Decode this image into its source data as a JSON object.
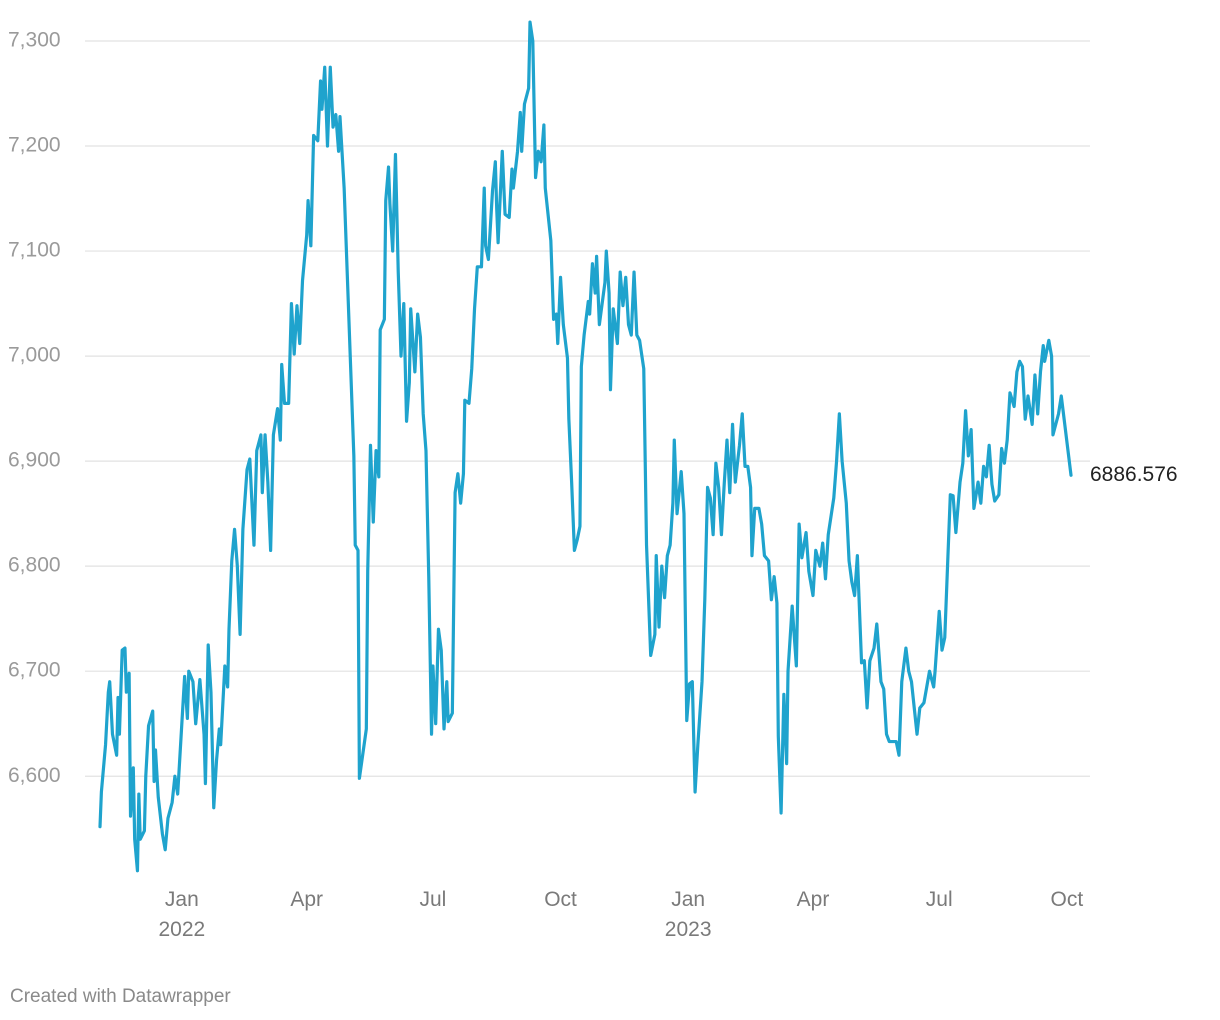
{
  "chart_data": {
    "type": "line",
    "color": "#1fa3cd",
    "credit": "Created with Datawrapper",
    "xlim": [
      "2021-11-03",
      "2023-10-04"
    ],
    "xticks": [
      {
        "value": "2022-01-01",
        "label": "Jan 2022"
      },
      {
        "value": "2022-04-01",
        "label": "Apr"
      },
      {
        "value": "2022-07-01",
        "label": "Jul"
      },
      {
        "value": "2022-10-01",
        "label": "Oct"
      },
      {
        "value": "2023-01-01",
        "label": "Jan 2023"
      },
      {
        "value": "2023-04-01",
        "label": "Apr"
      },
      {
        "value": "2023-07-01",
        "label": "Jul"
      },
      {
        "value": "2023-10-01",
        "label": "Oct"
      }
    ],
    "ylim": [
      6505,
      7320
    ],
    "yticks": [
      {
        "value": 6600,
        "label": "6,600"
      },
      {
        "value": 6700,
        "label": "6,700"
      },
      {
        "value": 6800,
        "label": "6,800"
      },
      {
        "value": 6900,
        "label": "6,900"
      },
      {
        "value": 7000,
        "label": "7,000"
      },
      {
        "value": 7100,
        "label": "7,100"
      },
      {
        "value": 7200,
        "label": "7,200"
      },
      {
        "value": 7300,
        "label": "7,300"
      }
    ],
    "grid": true,
    "x": [
      "2021-11-03",
      "2021-11-04",
      "2021-11-07",
      "2021-11-09",
      "2021-11-10",
      "2021-11-12",
      "2021-11-15",
      "2021-11-16",
      "2021-11-17",
      "2021-11-19",
      "2021-11-21",
      "2021-11-22",
      "2021-11-24",
      "2021-11-25",
      "2021-11-27",
      "2021-11-28",
      "2021-11-30",
      "2021-12-01",
      "2021-12-02",
      "2021-12-05",
      "2021-12-06",
      "2021-12-08",
      "2021-12-11",
      "2021-12-12",
      "2021-12-13",
      "2021-12-15",
      "2021-12-18",
      "2021-12-20",
      "2021-12-22",
      "2021-12-25",
      "2021-12-27",
      "2021-12-29",
      "2022-01-03",
      "2022-01-05",
      "2022-01-06",
      "2022-01-09",
      "2022-01-11",
      "2022-01-14",
      "2022-01-17",
      "2022-01-18",
      "2022-01-20",
      "2022-01-22",
      "2022-01-24",
      "2022-01-26",
      "2022-01-28",
      "2022-01-29",
      "2022-02-01",
      "2022-02-03",
      "2022-02-04",
      "2022-02-06",
      "2022-02-08",
      "2022-02-10",
      "2022-02-12",
      "2022-02-14",
      "2022-02-17",
      "2022-02-19",
      "2022-02-22",
      "2022-02-24",
      "2022-02-27",
      "2022-02-28",
      "2022-03-02",
      "2022-03-04",
      "2022-03-06",
      "2022-03-08",
      "2022-03-11",
      "2022-03-13",
      "2022-03-14",
      "2022-03-16",
      "2022-03-19",
      "2022-03-21",
      "2022-03-23",
      "2022-03-25",
      "2022-03-27",
      "2022-03-29",
      "2022-04-01",
      "2022-04-02",
      "2022-04-04",
      "2022-04-06",
      "2022-04-09",
      "2022-04-11",
      "2022-04-12",
      "2022-04-14",
      "2022-04-16",
      "2022-04-18",
      "2022-04-20",
      "2022-04-22",
      "2022-04-24",
      "2022-04-25",
      "2022-04-28",
      "2022-05-05",
      "2022-05-06",
      "2022-05-08",
      "2022-05-09",
      "2022-05-14",
      "2022-05-15",
      "2022-05-17",
      "2022-05-19",
      "2022-05-21",
      "2022-05-23",
      "2022-05-24",
      "2022-05-27",
      "2022-05-28",
      "2022-05-30",
      "2022-05-31",
      "2022-06-02",
      "2022-06-04",
      "2022-06-06",
      "2022-06-08",
      "2022-06-10",
      "2022-06-12",
      "2022-06-14",
      "2022-06-15",
      "2022-06-18",
      "2022-06-20",
      "2022-06-22",
      "2022-06-24",
      "2022-06-26",
      "2022-06-28",
      "2022-06-30",
      "2022-07-01",
      "2022-07-03",
      "2022-07-05",
      "2022-07-07",
      "2022-07-09",
      "2022-07-11",
      "2022-07-12",
      "2022-07-15",
      "2022-07-17",
      "2022-07-19",
      "2022-07-21",
      "2022-07-23",
      "2022-07-24",
      "2022-07-27",
      "2022-07-29",
      "2022-07-31",
      "2022-08-02",
      "2022-08-05",
      "2022-08-07",
      "2022-08-08",
      "2022-08-10",
      "2022-08-13",
      "2022-08-15",
      "2022-08-16",
      "2022-08-17",
      "2022-08-20",
      "2022-08-22",
      "2022-08-25",
      "2022-08-27",
      "2022-08-28",
      "2022-08-31",
      "2022-09-02",
      "2022-09-03",
      "2022-09-05",
      "2022-09-08",
      "2022-09-09",
      "2022-09-11",
      "2022-09-13",
      "2022-09-15",
      "2022-09-17",
      "2022-09-19",
      "2022-09-20",
      "2022-09-24",
      "2022-09-26",
      "2022-09-28",
      "2022-09-29",
      "2022-10-01",
      "2022-10-03",
      "2022-10-06",
      "2022-10-07",
      "2022-10-09",
      "2022-10-11",
      "2022-10-13",
      "2022-10-15",
      "2022-10-16",
      "2022-10-18",
      "2022-10-21",
      "2022-10-22",
      "2022-10-24",
      "2022-10-26",
      "2022-10-27",
      "2022-10-29",
      "2022-10-31",
      "2022-11-02",
      "2022-11-03",
      "2022-11-05",
      "2022-11-06",
      "2022-11-08",
      "2022-11-11",
      "2022-11-13",
      "2022-11-15",
      "2022-11-17",
      "2022-11-19",
      "2022-11-21",
      "2022-11-23",
      "2022-11-25",
      "2022-11-27",
      "2022-11-30",
      "2022-12-02",
      "2022-12-05",
      "2022-12-08",
      "2022-12-09",
      "2022-12-11",
      "2022-12-13",
      "2022-12-15",
      "2022-12-17",
      "2022-12-19",
      "2022-12-21",
      "2022-12-22",
      "2022-12-24",
      "2022-12-27",
      "2022-12-29",
      "2022-12-31",
      "2023-01-02",
      "2023-01-04",
      "2023-01-06",
      "2023-01-08",
      "2023-01-11",
      "2023-01-13",
      "2023-01-15",
      "2023-01-17",
      "2023-01-19",
      "2023-01-21",
      "2023-01-23",
      "2023-01-25",
      "2023-01-27",
      "2023-01-29",
      "2023-01-31",
      "2023-02-02",
      "2023-02-04",
      "2023-02-07",
      "2023-02-09",
      "2023-02-11",
      "2023-02-13",
      "2023-02-15",
      "2023-02-16",
      "2023-02-18",
      "2023-02-21",
      "2023-02-23",
      "2023-02-25",
      "2023-02-28",
      "2023-03-02",
      "2023-03-04",
      "2023-03-06",
      "2023-03-07",
      "2023-03-09",
      "2023-03-11",
      "2023-03-13",
      "2023-03-14",
      "2023-03-17",
      "2023-03-20",
      "2023-03-22",
      "2023-03-24",
      "2023-03-27",
      "2023-03-29",
      "2023-04-01",
      "2023-04-03",
      "2023-04-06",
      "2023-04-08",
      "2023-04-10",
      "2023-04-12",
      "2023-04-16",
      "2023-04-18",
      "2023-04-20",
      "2023-04-22",
      "2023-04-25",
      "2023-04-27",
      "2023-04-29",
      "2023-05-01",
      "2023-05-03",
      "2023-05-06",
      "2023-05-08",
      "2023-05-10",
      "2023-05-12",
      "2023-05-15",
      "2023-05-17",
      "2023-05-20",
      "2023-05-22",
      "2023-05-24",
      "2023-05-26",
      "2023-05-31",
      "2023-06-02",
      "2023-06-04",
      "2023-06-07",
      "2023-06-09",
      "2023-06-11",
      "2023-06-13",
      "2023-06-15",
      "2023-06-17",
      "2023-06-20",
      "2023-06-22",
      "2023-06-24",
      "2023-06-27",
      "2023-06-28",
      "2023-07-01",
      "2023-07-03",
      "2023-07-05",
      "2023-07-07",
      "2023-07-09",
      "2023-07-11",
      "2023-07-13",
      "2023-07-16",
      "2023-07-18",
      "2023-07-20",
      "2023-07-22",
      "2023-07-24",
      "2023-07-26",
      "2023-07-29",
      "2023-07-31",
      "2023-08-02",
      "2023-08-04",
      "2023-08-06",
      "2023-08-08",
      "2023-08-10",
      "2023-08-13",
      "2023-08-15",
      "2023-08-17",
      "2023-08-19",
      "2023-08-21",
      "2023-08-24",
      "2023-08-26",
      "2023-08-28",
      "2023-08-30",
      "2023-09-01",
      "2023-09-03",
      "2023-09-06",
      "2023-09-08",
      "2023-09-10",
      "2023-09-12",
      "2023-09-14",
      "2023-09-15",
      "2023-09-18",
      "2023-09-20",
      "2023-09-21",
      "2023-09-23",
      "2023-09-25",
      "2023-09-27",
      "2023-10-04"
    ],
    "values": [
      6552,
      6585,
      6630,
      6680,
      6690,
      6640,
      6620,
      6675,
      6640,
      6720,
      6722,
      6680,
      6698,
      6562,
      6608,
      6540,
      6510,
      6583,
      6540,
      6548,
      6600,
      6648,
      6662,
      6595,
      6625,
      6580,
      6545,
      6530,
      6560,
      6575,
      6600,
      6583,
      6695,
      6655,
      6700,
      6690,
      6650,
      6692,
      6640,
      6593,
      6725,
      6680,
      6570,
      6615,
      6645,
      6630,
      6705,
      6685,
      6740,
      6805,
      6835,
      6800,
      6735,
      6835,
      6892,
      6902,
      6820,
      6910,
      6925,
      6870,
      6925,
      6880,
      6815,
      6925,
      6950,
      6920,
      6992,
      6955,
      6955,
      7050,
      7002,
      7048,
      7012,
      7072,
      7115,
      7148,
      7105,
      7210,
      7205,
      7262,
      7235,
      7275,
      7200,
      7275,
      7218,
      7230,
      7195,
      7228,
      7160,
      6905,
      6820,
      6815,
      6598,
      6645,
      6795,
      6915,
      6842,
      6910,
      6885,
      7025,
      7035,
      7148,
      7180,
      7145,
      7100,
      7192,
      7080,
      7000,
      7050,
      6938,
      6975,
      7045,
      6985,
      7040,
      7018,
      6945,
      6910,
      6790,
      6640,
      6705,
      6650,
      6740,
      6720,
      6645,
      6690,
      6652,
      6660,
      6870,
      6888,
      6860,
      6888,
      6958,
      6955,
      6988,
      7045,
      7085,
      7085,
      7160,
      7105,
      7092,
      7158,
      7185,
      7140,
      7108,
      7195,
      7135,
      7132,
      7178,
      7160,
      7195,
      7232,
      7195,
      7240,
      7255,
      7318,
      7300,
      7170,
      7195,
      7185,
      7220,
      7160,
      7110,
      7035,
      7040,
      7012,
      7075,
      7030,
      6998,
      6940,
      6880,
      6815,
      6825,
      6838,
      6990,
      7020,
      7052,
      7040,
      7088,
      7060,
      7095,
      7030,
      7050,
      7070,
      7100,
      7060,
      6968,
      7045,
      7012,
      7080,
      7048,
      7075,
      7030,
      7020,
      7080,
      7020,
      7015,
      6988,
      6820,
      6715,
      6735,
      6810,
      6742,
      6800,
      6770,
      6810,
      6820,
      6860,
      6920,
      6850,
      6890,
      6850,
      6653,
      6688,
      6690,
      6585,
      6630,
      6690,
      6768,
      6875,
      6865,
      6830,
      6898,
      6875,
      6830,
      6878,
      6920,
      6870,
      6935,
      6880,
      6915,
      6945,
      6895,
      6895,
      6875,
      6810,
      6855,
      6855,
      6840,
      6810,
      6805,
      6768,
      6790,
      6765,
      6638,
      6565,
      6678,
      6612,
      6700,
      6762,
      6705,
      6840,
      6808,
      6832,
      6795,
      6772,
      6815,
      6800,
      6822,
      6788,
      6830,
      6865,
      6900,
      6945,
      6900,
      6860,
      6805,
      6785,
      6772,
      6810,
      6708,
      6710,
      6665,
      6710,
      6722,
      6745,
      6690,
      6683,
      6640,
      6633,
      6633,
      6620,
      6690,
      6722,
      6700,
      6690,
      6665,
      6640,
      6665,
      6670,
      6685,
      6700,
      6685,
      6700,
      6757,
      6720,
      6732,
      6800,
      6868,
      6867,
      6832,
      6880,
      6898,
      6948,
      6905,
      6930,
      6855,
      6880,
      6860,
      6895,
      6885,
      6915,
      6878,
      6862,
      6868,
      6912,
      6898,
      6920,
      6965,
      6952,
      6985,
      6995,
      6990,
      6940,
      6962,
      6935,
      6982,
      6945,
      6985,
      7010,
      6995,
      7015,
      7000,
      6925,
      6935,
      6945,
      6962,
      6886.576
    ]
  }
}
